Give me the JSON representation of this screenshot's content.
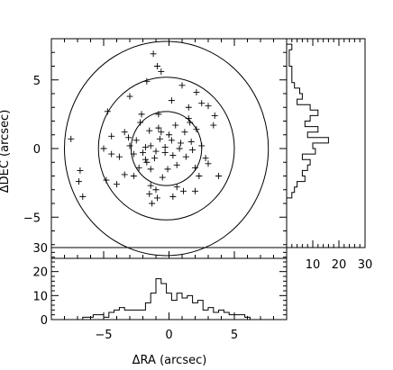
{
  "chart_data": [
    {
      "panel": "main",
      "type": "scatter",
      "marker": "plus",
      "xlabel": "",
      "ylabel": "ΔDEC (arcsec)",
      "xlim": [
        -9,
        9
      ],
      "ylim": [
        -8,
        8
      ],
      "xticks": [
        -5,
        0,
        5
      ],
      "yticks": [
        -5,
        0,
        5
      ],
      "circle_radii": [
        2.7,
        5.2,
        7.8
      ],
      "circle_center": [
        -0.2,
        0
      ],
      "points": [
        [
          -1.2,
          6.9
        ],
        [
          -0.9,
          6.0
        ],
        [
          -0.6,
          5.6
        ],
        [
          -1.7,
          4.9
        ],
        [
          -3.0,
          3.8
        ],
        [
          1.0,
          4.6
        ],
        [
          2.1,
          4.1
        ],
        [
          3.0,
          3.1
        ],
        [
          3.5,
          2.4
        ],
        [
          1.5,
          3.0
        ],
        [
          2.5,
          3.3
        ],
        [
          3.4,
          1.7
        ],
        [
          1.5,
          2.2
        ],
        [
          -0.8,
          2.5
        ],
        [
          -2.1,
          2.5
        ],
        [
          -4.7,
          2.7
        ],
        [
          0.2,
          3.5
        ],
        [
          -2.2,
          1.9
        ],
        [
          -0.8,
          1.5
        ],
        [
          -1.5,
          1.3
        ],
        [
          0.5,
          1.7
        ],
        [
          2.1,
          1.4
        ],
        [
          1.2,
          1.2
        ],
        [
          -3.4,
          1.2
        ],
        [
          -4.4,
          0.9
        ],
        [
          -7.5,
          0.7
        ],
        [
          -5.0,
          0.0
        ],
        [
          -3.0,
          0.2
        ],
        [
          -2.5,
          0.6
        ],
        [
          -1.8,
          0.1
        ],
        [
          -1.4,
          0.2
        ],
        [
          -0.7,
          0.7
        ],
        [
          0.2,
          0.6
        ],
        [
          0.9,
          0.4
        ],
        [
          1.7,
          0.5
        ],
        [
          2.5,
          0.2
        ],
        [
          -0.3,
          -0.3
        ],
        [
          -1.1,
          -0.7
        ],
        [
          -1.8,
          -0.8
        ],
        [
          -2.7,
          -0.4
        ],
        [
          -3.8,
          -0.6
        ],
        [
          -4.4,
          -0.4
        ],
        [
          0.6,
          -1.2
        ],
        [
          1.3,
          -0.6
        ],
        [
          2.8,
          -0.7
        ],
        [
          3.0,
          -1.1
        ],
        [
          -0.1,
          -1.5
        ],
        [
          -1.4,
          -1.5
        ],
        [
          -2.3,
          -1.4
        ],
        [
          -3.4,
          -1.9
        ],
        [
          -4.8,
          -2.3
        ],
        [
          -6.8,
          -1.6
        ],
        [
          -6.9,
          -2.4
        ],
        [
          2.3,
          -2.0
        ],
        [
          2.0,
          -1.4
        ],
        [
          3.8,
          -2.0
        ],
        [
          -1.4,
          -2.7
        ],
        [
          -1.0,
          -3.0
        ],
        [
          -1.5,
          -3.3
        ],
        [
          -0.9,
          -3.6
        ],
        [
          0.6,
          -2.8
        ],
        [
          1.1,
          -3.1
        ],
        [
          -6.6,
          -3.5
        ],
        [
          0.3,
          -3.5
        ],
        [
          -1.3,
          -4.0
        ],
        [
          2.0,
          -3.1
        ],
        [
          -4.0,
          -2.6
        ],
        [
          -0.3,
          0.1
        ],
        [
          1.8,
          -0.1
        ],
        [
          0.0,
          1.0
        ],
        [
          -1.0,
          -0.2
        ],
        [
          -2.0,
          -0.3
        ],
        [
          0.3,
          -0.5
        ],
        [
          -0.6,
          1.2
        ],
        [
          -2.7,
          -2.0
        ],
        [
          1.6,
          1.9
        ],
        [
          -0.5,
          -2.1
        ],
        [
          0.8,
          0.0
        ],
        [
          -3.1,
          0.8
        ],
        [
          -1.7,
          -1.0
        ]
      ]
    },
    {
      "panel": "right",
      "type": "histogram",
      "orientation": "horizontal",
      "xlabel": "",
      "ylabel": "",
      "xlim": [
        0,
        30
      ],
      "xticks": [
        10,
        20,
        30
      ],
      "bin_edges": [
        -3.6,
        -3.2,
        -2.8,
        -2.4,
        -2.0,
        -1.6,
        -1.2,
        -0.8,
        -0.4,
        0.0,
        0.4,
        0.8,
        1.2,
        1.6,
        2.0,
        2.4,
        2.8,
        3.2,
        3.6,
        4.0,
        4.4,
        4.8,
        5.2,
        5.6,
        6.0,
        6.4,
        6.8,
        7.2,
        7.6
      ],
      "counts": [
        2,
        3,
        4,
        7,
        6,
        8,
        9,
        6,
        11,
        10,
        16,
        8,
        12,
        7,
        9,
        12,
        9,
        4,
        6,
        5,
        3,
        2,
        2,
        2,
        1,
        1,
        1,
        2
      ]
    },
    {
      "panel": "bottom",
      "type": "histogram",
      "orientation": "vertical",
      "xlabel": "ΔRA (arcsec)",
      "ylabel": "",
      "xlim": [
        -9,
        9
      ],
      "ylim": [
        0,
        30
      ],
      "xticks": [
        -5,
        0,
        5
      ],
      "yticks": [
        0,
        10,
        20,
        30
      ],
      "bin_edges": [
        -7.0,
        -6.6,
        -6.2,
        -5.8,
        -5.4,
        -5.0,
        -4.6,
        -4.2,
        -3.8,
        -3.4,
        -3.0,
        -2.6,
        -2.2,
        -1.8,
        -1.4,
        -1.0,
        -0.6,
        -0.2,
        0.2,
        0.6,
        1.0,
        1.4,
        1.8,
        2.2,
        2.6,
        3.0,
        3.4,
        3.8,
        4.2,
        4.6,
        5.0,
        5.4,
        5.8,
        6.2,
        6.6
      ],
      "counts": [
        0,
        1,
        1,
        2,
        2,
        1,
        3,
        4,
        5,
        4,
        4,
        4,
        4,
        7,
        11,
        17,
        15,
        11,
        8,
        11,
        9,
        10,
        7,
        8,
        4,
        5,
        3,
        4,
        3,
        2,
        2,
        2,
        1,
        0
      ]
    }
  ]
}
